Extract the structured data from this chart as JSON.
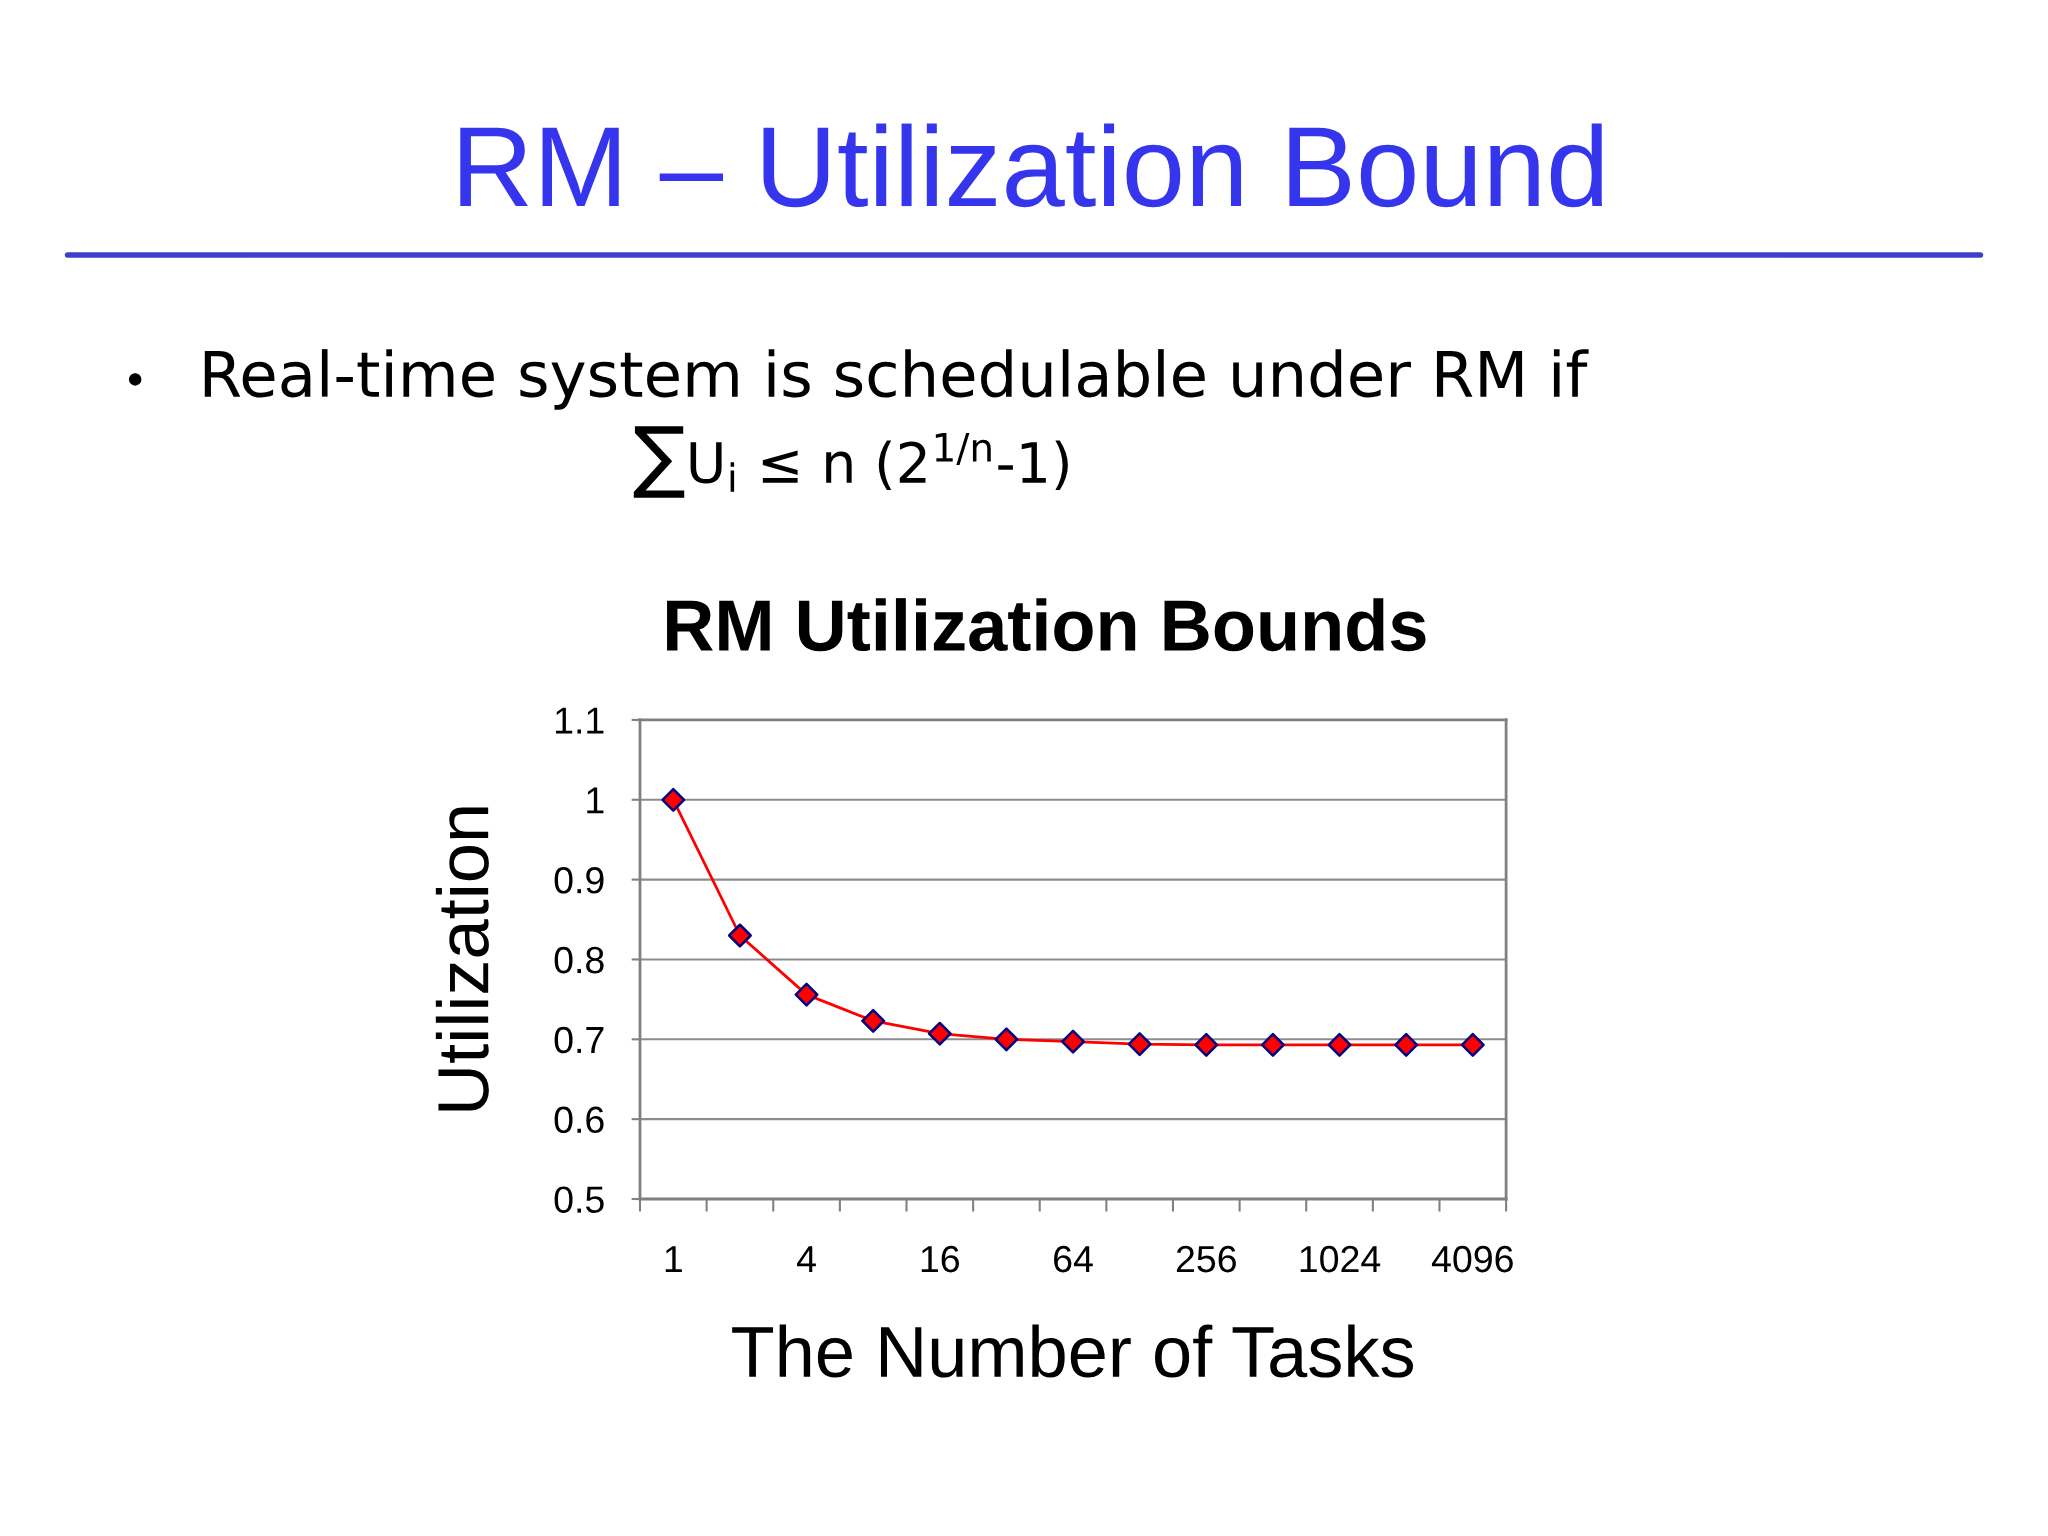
{
  "chart_data": {
    "type": "line",
    "title": "RM Utilization Bounds",
    "xlabel": "The Number of Tasks",
    "ylabel": "Utilization",
    "categories": [
      "1",
      null,
      "4",
      null,
      "16",
      null,
      "64",
      null,
      "256",
      null,
      "1024",
      null,
      "4096"
    ],
    "series": [
      {
        "color": "#ff0000",
        "values": [
          1,
          0.83,
          0.756,
          0.723,
          0.707,
          0.7,
          0.697,
          0.694,
          0.693,
          0.693,
          0.693,
          0.693,
          0.693
        ]
      }
    ],
    "ylim": [
      0.5,
      1.1
    ],
    "yticks": [
      0.5,
      0.6,
      0.7,
      0.8,
      0.9,
      1,
      1.1
    ],
    "grid": "y",
    "marker": "diamond",
    "line_style": "solid",
    "annotations": [
      "RM – Utilization Bound",
      "Real-time system is schedulable under RM if",
      "∑U$_{i}$ ≤ n (2$^{1/n}$-1)"
    ]
  }
}
